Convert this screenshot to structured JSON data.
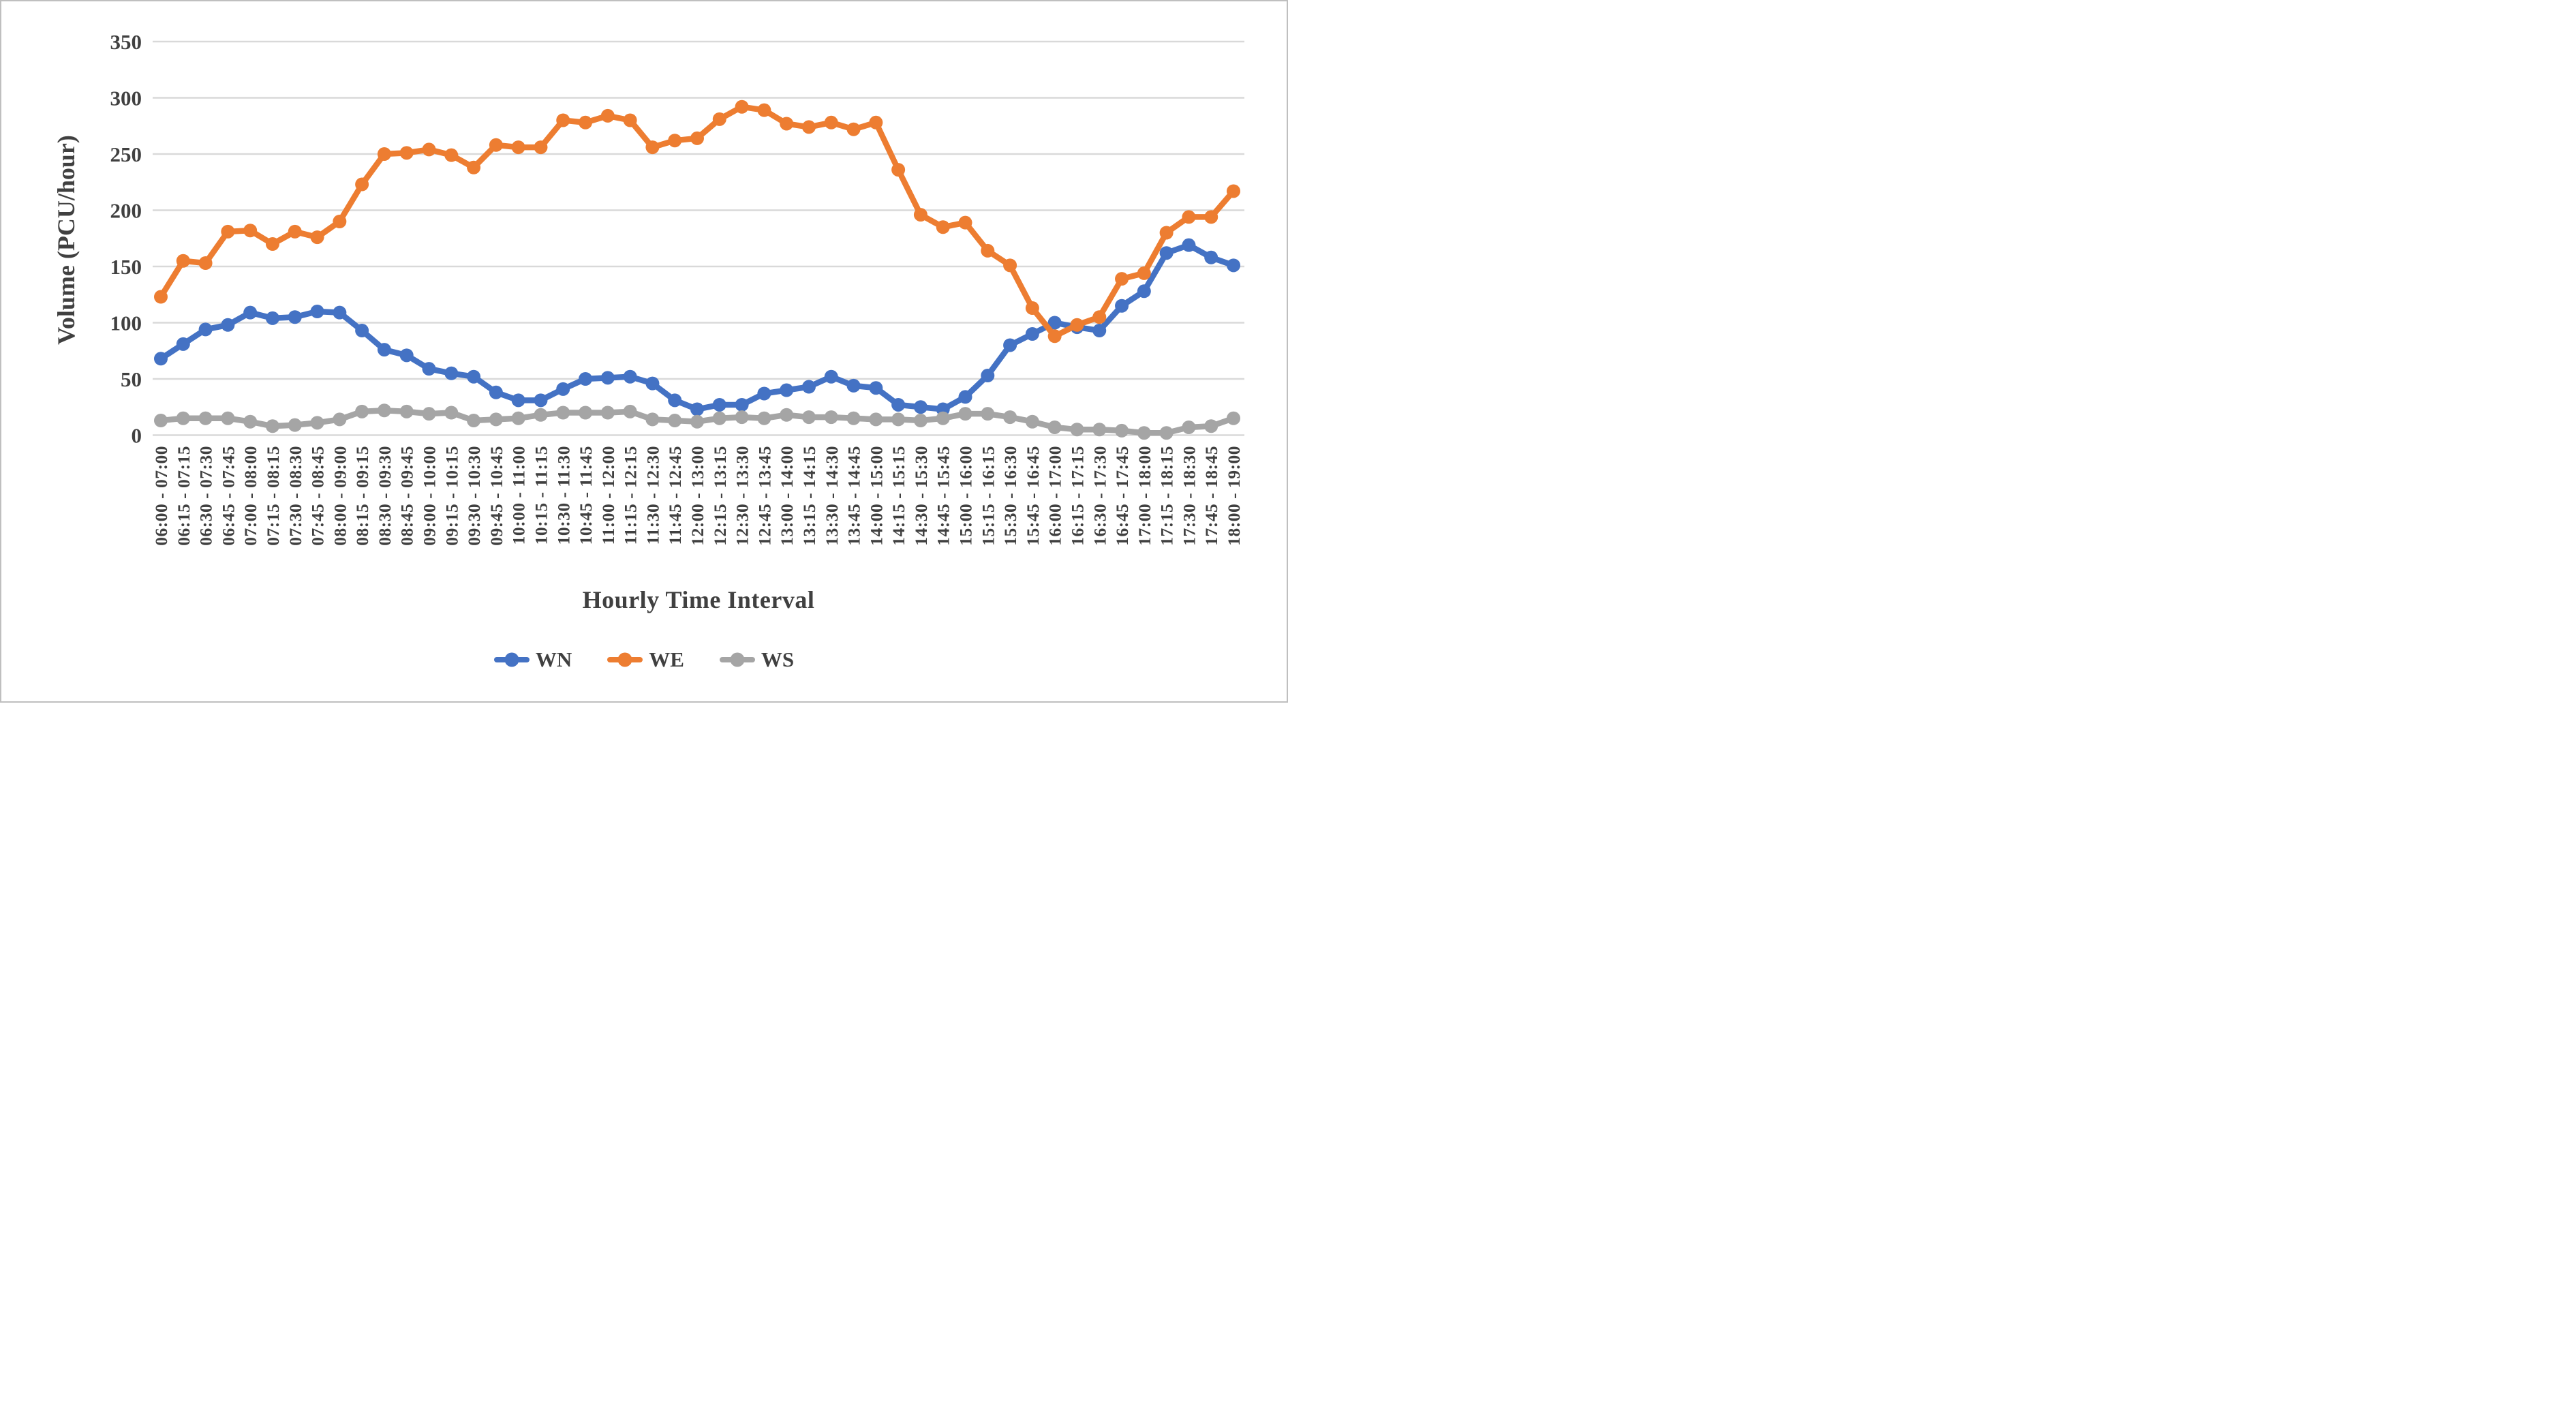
{
  "figure": {
    "background": "#FFFFFF",
    "border_color": "#BFBFBF"
  },
  "chart_data": {
    "type": "line",
    "title": "",
    "xlabel": "Hourly Time Interval",
    "ylabel": "Volume (PCU/hour)",
    "ylim": [
      0,
      350
    ],
    "y_ticks": [
      0,
      50,
      100,
      150,
      200,
      250,
      300,
      350
    ],
    "grid": "horizontal",
    "gridline_color": "#D9D9D9",
    "axis_text_color": "#404040",
    "marker_style": "circle",
    "legend_position": "bottom",
    "categories": [
      "06:00 - 07:00",
      "06:15 - 07:15",
      "06:30 - 07:30",
      "06:45 - 07:45",
      "07:00 - 08:00",
      "07:15 - 08:15",
      "07:30 - 08:30",
      "07:45 - 08:45",
      "08:00 - 09:00",
      "08:15 - 09:15",
      "08:30 - 09:30",
      "08:45 - 09:45",
      "09:00 - 10:00",
      "09:15 - 10:15",
      "09:30 - 10:30",
      "09:45 - 10:45",
      "10:00 - 11:00",
      "10:15 - 11:15",
      "10:30 - 11:30",
      "10:45 - 11:45",
      "11:00 - 12:00",
      "11:15 - 12:15",
      "11:30 - 12:30",
      "11:45 - 12:45",
      "12:00 - 13:00",
      "12:15 - 13:15",
      "12:30 - 13:30",
      "12:45 - 13:45",
      "13:00 - 14:00",
      "13:15 - 14:15",
      "13:30 - 14:30",
      "13:45 - 14:45",
      "14:00 - 15:00",
      "14:15 - 15:15",
      "14:30 - 15:30",
      "14:45 - 15:45",
      "15:00 - 16:00",
      "15:15 - 16:15",
      "15:30 - 16:30",
      "15:45 - 16:45",
      "16:00 - 17:00",
      "16:15 - 17:15",
      "16:30 - 17:30",
      "16:45 - 17:45",
      "17:00 - 18:00",
      "17:15 - 18:15",
      "17:30 - 18:30",
      "17:45 - 18:45",
      "18:00 - 19:00"
    ],
    "series": [
      {
        "name": "WN",
        "color": "#4472C4",
        "values": [
          68,
          81,
          94,
          98,
          109,
          104,
          105,
          110,
          109,
          93,
          76,
          71,
          59,
          55,
          52,
          38,
          31,
          31,
          41,
          50,
          51,
          52,
          46,
          31,
          23,
          27,
          27,
          37,
          40,
          43,
          52,
          44,
          42,
          27,
          25,
          23,
          34,
          53,
          80,
          90,
          100,
          96,
          93,
          115,
          128,
          162,
          169,
          158,
          151
        ]
      },
      {
        "name": "WE",
        "color": "#ED7D31",
        "values": [
          123,
          155,
          153,
          181,
          182,
          170,
          181,
          176,
          190,
          223,
          250,
          251,
          254,
          249,
          238,
          258,
          256,
          256,
          280,
          278,
          284,
          280,
          256,
          262,
          264,
          281,
          292,
          289,
          277,
          274,
          278,
          272,
          278,
          236,
          196,
          185,
          189,
          164,
          151,
          113,
          88,
          98,
          105,
          139,
          144,
          180,
          194,
          194,
          217
        ]
      },
      {
        "name": "WS",
        "color": "#A5A5A5",
        "values": [
          13,
          15,
          15,
          15,
          12,
          8,
          9,
          11,
          14,
          21,
          22,
          21,
          19,
          20,
          13,
          14,
          15,
          18,
          20,
          20,
          20,
          21,
          14,
          13,
          12,
          15,
          16,
          15,
          18,
          16,
          16,
          15,
          14,
          14,
          13,
          15,
          19,
          19,
          16,
          12,
          7,
          5,
          5,
          4,
          2,
          2,
          7,
          8,
          15
        ]
      }
    ]
  }
}
